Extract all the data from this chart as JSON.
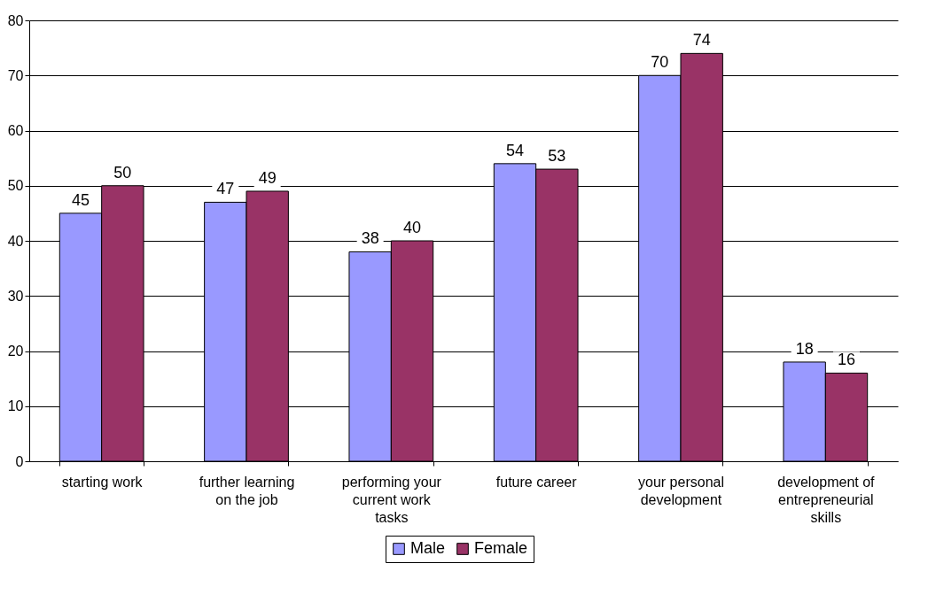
{
  "chart_data": {
    "type": "bar",
    "categories": [
      "starting work",
      "further learning on the job",
      "performing your current work tasks",
      "future career",
      "your personal development",
      "development of entrepreneurial skills"
    ],
    "series": [
      {
        "name": "Male",
        "color": "#9999ff",
        "values": [
          45,
          47,
          38,
          54,
          70,
          18
        ]
      },
      {
        "name": "Female",
        "color": "#993366",
        "values": [
          50,
          49,
          40,
          53,
          74,
          16
        ]
      }
    ],
    "ylim": [
      0,
      80
    ],
    "yticks": [
      0,
      10,
      20,
      30,
      40,
      50,
      60,
      70,
      80
    ],
    "grid": "y",
    "legend": "bottom",
    "data_labels": true
  }
}
